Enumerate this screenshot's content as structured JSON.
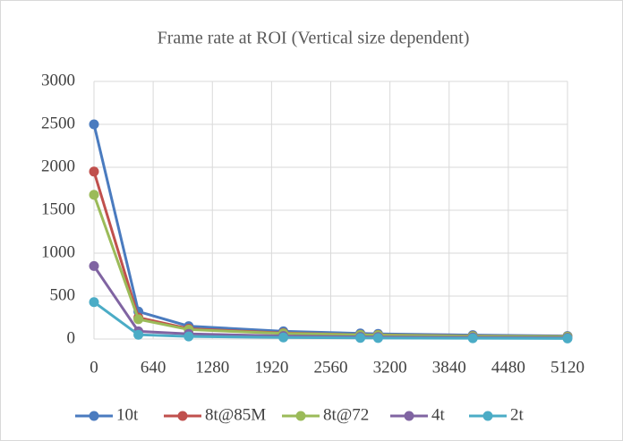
{
  "chart_data": {
    "type": "line",
    "title": "Frame rate at ROI (Vertical size dependent)",
    "x": [
      0,
      480,
      1024,
      2048,
      2880,
      3072,
      4096,
      5120
    ],
    "series": [
      {
        "name": "10t",
        "color": "#4a7bbf",
        "values": [
          2500,
          320,
          150,
          90,
          65,
          60,
          45,
          35
        ]
      },
      {
        "name": "8t@85M",
        "color": "#c0504d",
        "values": [
          1950,
          250,
          120,
          70,
          50,
          48,
          35,
          28
        ]
      },
      {
        "name": "8t@72",
        "color": "#9bbb59",
        "values": [
          1680,
          230,
          110,
          65,
          48,
          45,
          33,
          27
        ]
      },
      {
        "name": "4t",
        "color": "#8064a2",
        "values": [
          850,
          90,
          60,
          35,
          25,
          24,
          18,
          14
        ]
      },
      {
        "name": "2t",
        "color": "#4bacc6",
        "values": [
          430,
          50,
          30,
          18,
          13,
          12,
          9,
          7
        ]
      }
    ],
    "xlim": [
      0,
      5120
    ],
    "xticks": [
      0,
      640,
      1280,
      1920,
      2560,
      3200,
      3840,
      4480,
      5120
    ],
    "ylim": [
      0,
      3000
    ],
    "yticks": [
      0,
      500,
      1000,
      1500,
      2000,
      2500,
      3000
    ],
    "grid": true,
    "legend": "bottom"
  }
}
